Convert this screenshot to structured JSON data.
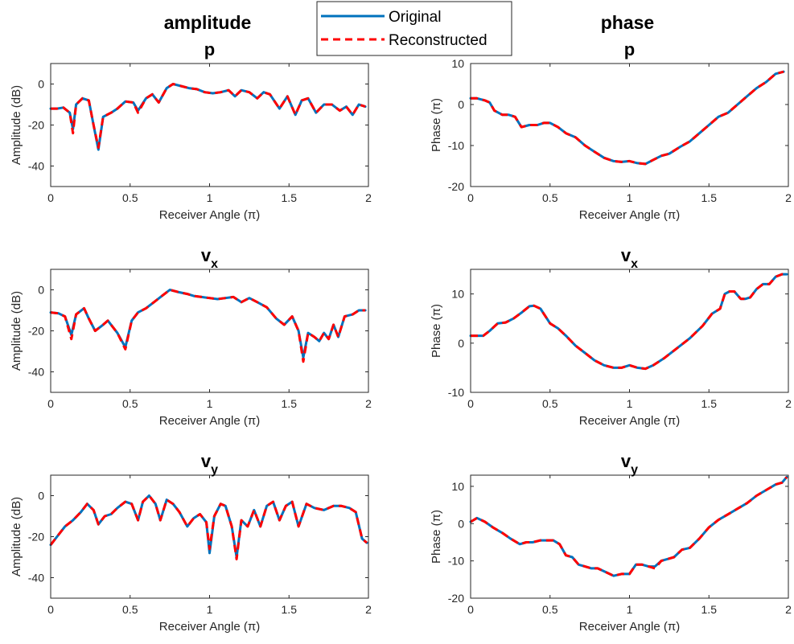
{
  "figure": {
    "col_titles": [
      "amplitude",
      "phase"
    ],
    "legend": [
      {
        "label": "Original",
        "color": "#0072BD",
        "style": "solid"
      },
      {
        "label": "Reconstructed",
        "color": "#FF0000",
        "style": "dashed"
      }
    ]
  },
  "chart_data": [
    {
      "type": "line",
      "title": "p",
      "title_sub": "",
      "xlabel": "Receiver Angle (π)",
      "ylabel": "Amplitude (dB)",
      "xlim": [
        0,
        2
      ],
      "ylim": [
        -50,
        10
      ],
      "xticks": [
        0,
        0.5,
        1,
        1.5,
        2
      ],
      "yticks": [
        -40,
        -20,
        0
      ],
      "x": [
        0,
        0.04,
        0.08,
        0.12,
        0.14,
        0.16,
        0.2,
        0.24,
        0.27,
        0.3,
        0.33,
        0.38,
        0.42,
        0.47,
        0.52,
        0.55,
        0.6,
        0.64,
        0.68,
        0.73,
        0.77,
        0.82,
        0.87,
        0.92,
        0.97,
        1.02,
        1.07,
        1.12,
        1.16,
        1.2,
        1.25,
        1.3,
        1.34,
        1.38,
        1.44,
        1.49,
        1.54,
        1.58,
        1.62,
        1.67,
        1.72,
        1.77,
        1.82,
        1.86,
        1.9,
        1.94,
        1.98
      ],
      "series": [
        {
          "name": "Original",
          "values": [
            -12,
            -12,
            -11.5,
            -14,
            -22,
            -10,
            -7,
            -8,
            -20,
            -32,
            -16,
            -14,
            -12,
            -8.5,
            -9,
            -13,
            -7,
            -5,
            -9,
            -2,
            0,
            -1,
            -2,
            -2.5,
            -4,
            -4.5,
            -4,
            -3,
            -6,
            -3,
            -4,
            -7,
            -4,
            -5,
            -12,
            -6,
            -15,
            -8,
            -7,
            -14,
            -10,
            -10,
            -13,
            -11,
            -15,
            -10,
            -11
          ]
        },
        {
          "name": "Reconstructed",
          "values": [
            -12,
            -12,
            -11.5,
            -14,
            -24,
            -10,
            -7,
            -8,
            -20,
            -31,
            -16,
            -14,
            -12,
            -8.5,
            -9,
            -14,
            -7,
            -5,
            -9,
            -2,
            0,
            -1,
            -2,
            -2.5,
            -4,
            -4.5,
            -4,
            -3,
            -6,
            -3,
            -4,
            -7,
            -4,
            -5,
            -12,
            -6,
            -15,
            -8,
            -7,
            -14,
            -10,
            -10,
            -13,
            -11,
            -15,
            -10,
            -11
          ]
        }
      ]
    },
    {
      "type": "line",
      "title": "p",
      "title_sub": "",
      "xlabel": "Receiver Angle (π)",
      "ylabel": "Phase (π)",
      "xlim": [
        0,
        2
      ],
      "ylim": [
        -20,
        10
      ],
      "xticks": [
        0,
        0.5,
        1,
        1.5,
        2
      ],
      "yticks": [
        -20,
        -10,
        0,
        10
      ],
      "x": [
        0,
        0.04,
        0.09,
        0.12,
        0.15,
        0.2,
        0.24,
        0.28,
        0.32,
        0.37,
        0.42,
        0.46,
        0.5,
        0.55,
        0.6,
        0.66,
        0.72,
        0.78,
        0.84,
        0.9,
        0.95,
        1.0,
        1.05,
        1.1,
        1.15,
        1.2,
        1.25,
        1.32,
        1.38,
        1.44,
        1.5,
        1.56,
        1.62,
        1.68,
        1.74,
        1.8,
        1.86,
        1.92,
        1.97
      ],
      "series": [
        {
          "name": "Original",
          "values": [
            1.5,
            1.5,
            1,
            0.5,
            -1.5,
            -2.5,
            -2.5,
            -3,
            -5.5,
            -5,
            -5,
            -4.5,
            -4.5,
            -5.5,
            -7,
            -8,
            -10,
            -11.5,
            -13,
            -13.8,
            -14,
            -13.8,
            -14.3,
            -14.5,
            -13.5,
            -12.5,
            -12,
            -10.3,
            -9,
            -7,
            -5,
            -3,
            -2,
            0,
            2,
            4,
            5.5,
            7.5,
            8
          ]
        },
        {
          "name": "Reconstructed",
          "values": [
            1.5,
            1.5,
            1,
            0.5,
            -1.5,
            -2.5,
            -2.5,
            -3,
            -5.5,
            -5,
            -5,
            -4.5,
            -4.5,
            -5.5,
            -7,
            -8,
            -10,
            -11.5,
            -13,
            -13.8,
            -14,
            -13.8,
            -14.3,
            -14.5,
            -13.5,
            -12.5,
            -12,
            -10.3,
            -9,
            -7,
            -5,
            -3,
            -2,
            0,
            2,
            4,
            5.5,
            7.5,
            8
          ]
        }
      ]
    },
    {
      "type": "line",
      "title": "v",
      "title_sub": "x",
      "xlabel": "Receiver Angle (π)",
      "ylabel": "Amplitude (dB)",
      "xlim": [
        0,
        2
      ],
      "ylim": [
        -50,
        10
      ],
      "xticks": [
        0,
        0.5,
        1,
        1.5,
        2
      ],
      "yticks": [
        -40,
        -20,
        0
      ],
      "x": [
        0,
        0.05,
        0.09,
        0.13,
        0.16,
        0.21,
        0.24,
        0.28,
        0.33,
        0.36,
        0.42,
        0.47,
        0.51,
        0.55,
        0.6,
        0.65,
        0.7,
        0.75,
        0.8,
        0.86,
        0.9,
        0.95,
        1.0,
        1.05,
        1.1,
        1.15,
        1.2,
        1.25,
        1.3,
        1.36,
        1.42,
        1.47,
        1.52,
        1.56,
        1.59,
        1.62,
        1.66,
        1.69,
        1.72,
        1.75,
        1.78,
        1.81,
        1.85,
        1.9,
        1.94,
        1.98
      ],
      "series": [
        {
          "name": "Original",
          "values": [
            -11,
            -11.5,
            -13,
            -22,
            -12,
            -9,
            -14,
            -20,
            -17,
            -15,
            -21,
            -28,
            -15,
            -11,
            -9,
            -6,
            -3,
            0,
            -1,
            -2,
            -3,
            -3.5,
            -4,
            -4.5,
            -4,
            -3.5,
            -6,
            -4,
            -6,
            -8.5,
            -14,
            -17,
            -13,
            -20,
            -33,
            -21,
            -23,
            -25,
            -21,
            -24,
            -17,
            -23,
            -13,
            -12,
            -10,
            -10
          ]
        },
        {
          "name": "Reconstructed",
          "values": [
            -11,
            -11.5,
            -13,
            -24,
            -12,
            -9,
            -14,
            -20,
            -17,
            -15,
            -21,
            -29,
            -15,
            -11,
            -9,
            -6,
            -3,
            0,
            -1,
            -2,
            -3,
            -3.5,
            -4,
            -4.5,
            -4,
            -3.5,
            -6,
            -4,
            -6,
            -8.5,
            -14,
            -17,
            -13,
            -20,
            -35,
            -21,
            -23,
            -25,
            -21,
            -24,
            -17,
            -23,
            -13,
            -12,
            -10,
            -10
          ]
        }
      ]
    },
    {
      "type": "line",
      "title": "v",
      "title_sub": "x",
      "xlabel": "Receiver Angle (π)",
      "ylabel": "Phase (π)",
      "xlim": [
        0,
        2
      ],
      "ylim": [
        -10,
        15
      ],
      "xticks": [
        0,
        0.5,
        1,
        1.5,
        2
      ],
      "yticks": [
        -10,
        0,
        10
      ],
      "x": [
        0,
        0.05,
        0.08,
        0.12,
        0.17,
        0.22,
        0.27,
        0.32,
        0.37,
        0.4,
        0.44,
        0.5,
        0.55,
        0.6,
        0.66,
        0.72,
        0.78,
        0.84,
        0.9,
        0.95,
        1.0,
        1.05,
        1.1,
        1.15,
        1.22,
        1.3,
        1.38,
        1.46,
        1.52,
        1.57,
        1.6,
        1.63,
        1.66,
        1.7,
        1.73,
        1.76,
        1.8,
        1.84,
        1.88,
        1.92,
        1.96,
        1.99
      ],
      "series": [
        {
          "name": "Original",
          "values": [
            1.5,
            1.5,
            1.5,
            2.5,
            4,
            4.2,
            5,
            6.2,
            7.5,
            7.6,
            7,
            4,
            3,
            1.5,
            -0.5,
            -2,
            -3.5,
            -4.5,
            -5,
            -5,
            -4.5,
            -5,
            -5.2,
            -4.5,
            -3,
            -1,
            1,
            3.5,
            6,
            7,
            10,
            10.5,
            10.5,
            9,
            9,
            9.3,
            11,
            12,
            12,
            13.5,
            14,
            14
          ]
        },
        {
          "name": "Reconstructed",
          "values": [
            1.5,
            1.5,
            1.5,
            2.5,
            4,
            4.2,
            5,
            6.2,
            7.5,
            7.6,
            7,
            4,
            3,
            1.5,
            -0.5,
            -2,
            -3.5,
            -4.5,
            -5,
            -5,
            -4.5,
            -5,
            -5.2,
            -4.5,
            -3,
            -1,
            1,
            3.5,
            6,
            7,
            10,
            10.5,
            10.5,
            9,
            9,
            9.3,
            11,
            12,
            12,
            13.5,
            14,
            14
          ]
        }
      ]
    },
    {
      "type": "line",
      "title": "v",
      "title_sub": "y",
      "xlabel": "Receiver Angle (π)",
      "ylabel": "Amplitude (dB)",
      "xlim": [
        0,
        2
      ],
      "ylim": [
        -50,
        10
      ],
      "xticks": [
        0,
        0.5,
        1,
        1.5,
        2
      ],
      "yticks": [
        -40,
        -20,
        0
      ],
      "x": [
        0,
        0.04,
        0.09,
        0.14,
        0.19,
        0.23,
        0.27,
        0.3,
        0.34,
        0.38,
        0.42,
        0.47,
        0.51,
        0.55,
        0.58,
        0.62,
        0.66,
        0.69,
        0.73,
        0.77,
        0.81,
        0.86,
        0.9,
        0.94,
        0.98,
        1.0,
        1.03,
        1.07,
        1.1,
        1.14,
        1.17,
        1.2,
        1.24,
        1.28,
        1.32,
        1.36,
        1.4,
        1.44,
        1.48,
        1.52,
        1.56,
        1.61,
        1.66,
        1.72,
        1.78,
        1.83,
        1.88,
        1.92,
        1.96,
        1.99
      ],
      "series": [
        {
          "name": "Original",
          "values": [
            -24,
            -20,
            -15,
            -12,
            -8,
            -4,
            -7,
            -14,
            -10,
            -9,
            -6,
            -3,
            -4,
            -12,
            -3,
            0,
            -4,
            -12,
            -2,
            -4,
            -8,
            -15,
            -11,
            -9,
            -13,
            -28,
            -10,
            -4,
            -5,
            -15,
            -30,
            -12,
            -15,
            -7,
            -15,
            -5,
            -3,
            -12,
            -5,
            -3,
            -15,
            -4,
            -6,
            -7,
            -5,
            -5,
            -6,
            -8,
            -21,
            -23
          ]
        },
        {
          "name": "Reconstructed",
          "values": [
            -24,
            -20,
            -15,
            -12,
            -8,
            -4,
            -7,
            -14,
            -10,
            -9,
            -6,
            -3,
            -4,
            -12,
            -3,
            0,
            -4,
            -12,
            -2,
            -4,
            -8,
            -15,
            -11,
            -9,
            -13,
            -26,
            -10,
            -4,
            -5,
            -15,
            -31,
            -12,
            -15,
            -7,
            -15,
            -5,
            -3,
            -12,
            -5,
            -3,
            -15,
            -4,
            -6,
            -7,
            -5,
            -5,
            -6,
            -8,
            -21,
            -23
          ]
        }
      ]
    },
    {
      "type": "line",
      "title": "v",
      "title_sub": "y",
      "xlabel": "Receiver Angle (π)",
      "ylabel": "Phase (π)",
      "xlim": [
        0,
        2
      ],
      "ylim": [
        -20,
        13
      ],
      "xticks": [
        0,
        0.5,
        1,
        1.5,
        2
      ],
      "yticks": [
        -20,
        -10,
        0,
        10
      ],
      "x": [
        0,
        0.04,
        0.09,
        0.14,
        0.2,
        0.25,
        0.31,
        0.35,
        0.39,
        0.44,
        0.48,
        0.52,
        0.56,
        0.6,
        0.64,
        0.68,
        0.72,
        0.76,
        0.8,
        0.85,
        0.9,
        0.95,
        1.0,
        1.04,
        1.08,
        1.12,
        1.16,
        1.2,
        1.24,
        1.28,
        1.33,
        1.38,
        1.44,
        1.5,
        1.56,
        1.62,
        1.68,
        1.74,
        1.8,
        1.86,
        1.92,
        1.96,
        1.99
      ],
      "series": [
        {
          "name": "Original",
          "values": [
            0.5,
            1.5,
            0.5,
            -1,
            -2.5,
            -4,
            -5.5,
            -5,
            -5,
            -4.5,
            -4.5,
            -4.5,
            -5.5,
            -8.5,
            -9,
            -11,
            -11.5,
            -12,
            -12,
            -13,
            -14,
            -13.5,
            -13.5,
            -11,
            -11,
            -11.5,
            -11.5,
            -10,
            -9.5,
            -9,
            -7,
            -6.5,
            -4,
            -1,
            1,
            2.5,
            4,
            5.5,
            7.5,
            9,
            10.5,
            11,
            12.5
          ]
        },
        {
          "name": "Reconstructed",
          "values": [
            0.5,
            1.5,
            0.5,
            -1,
            -2.5,
            -4,
            -5.5,
            -5,
            -5,
            -4.5,
            -4.5,
            -4.5,
            -5.5,
            -8.5,
            -9,
            -11,
            -11.5,
            -12,
            -12,
            -13,
            -14,
            -13.5,
            -13.5,
            -11,
            -11,
            -11.5,
            -12,
            -10,
            -9.5,
            -9,
            -7,
            -6.5,
            -4,
            -1,
            1,
            2.5,
            4,
            5.5,
            7.5,
            9,
            10.5,
            11,
            12.5
          ]
        }
      ]
    }
  ]
}
